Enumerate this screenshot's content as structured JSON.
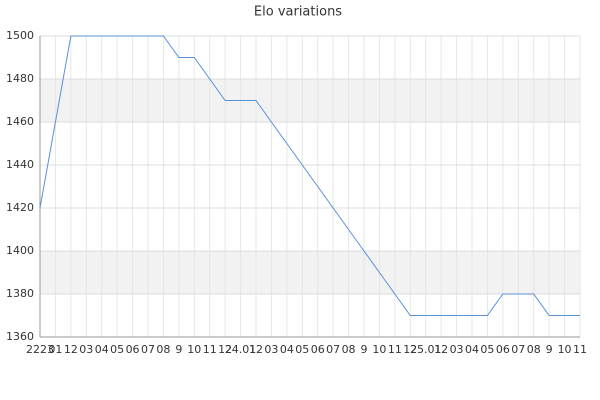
{
  "chart_data": {
    "type": "line",
    "title": "Elo variations",
    "categories": [
      "2223",
      "01",
      "12",
      "03",
      "04",
      "05",
      "06",
      "07",
      "08",
      "9",
      "10",
      "11",
      "12",
      "24.01",
      "12",
      "03",
      "04",
      "05",
      "06",
      "07",
      "08",
      "9",
      "10",
      "11",
      "12",
      "25.01",
      "12",
      "03",
      "04",
      "05",
      "06",
      "07",
      "08",
      "9",
      "10",
      "11"
    ],
    "series": [
      {
        "name": "Elo",
        "color": "#5b8fd9",
        "values": [
          1420,
          1460,
          1500,
          1500,
          1500,
          1500,
          1500,
          1500,
          1500,
          1490,
          1490,
          1480,
          1470,
          1470,
          1470,
          1460,
          1450,
          1440,
          1430,
          1420,
          1410,
          1400,
          1390,
          1380,
          1370,
          1370,
          1370,
          1370,
          1370,
          1370,
          1380,
          1380,
          1380,
          1370,
          1370,
          1370
        ]
      }
    ],
    "ylim": [
      1360,
      1500
    ],
    "yticks": [
      1360,
      1380,
      1400,
      1420,
      1440,
      1460,
      1480,
      1500
    ],
    "grid": true
  }
}
